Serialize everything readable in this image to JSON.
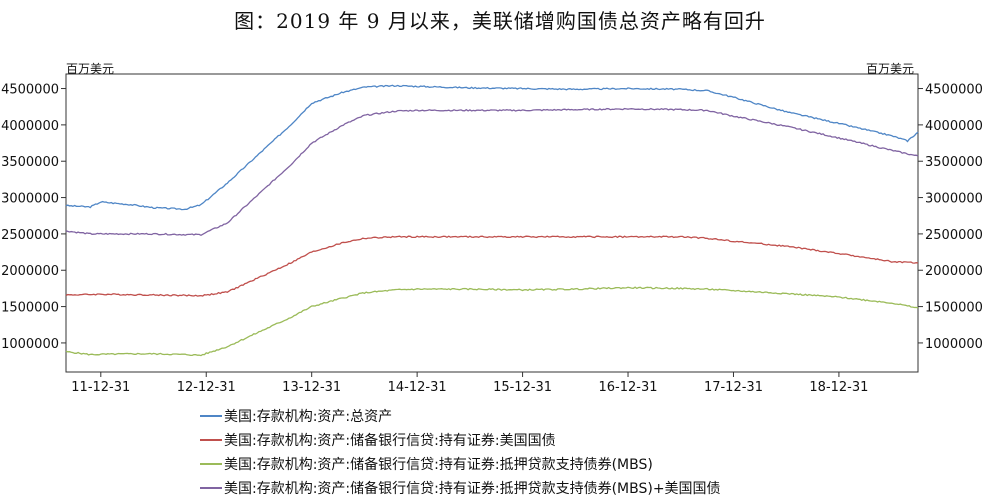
{
  "title": "图：2019 年 9 月以来，美联储增购国债总资产略有回升",
  "chart_data": {
    "type": "line",
    "left_unit": "百万美元",
    "right_unit": "百万美元",
    "x_ticks": [
      "11-12-31",
      "12-12-31",
      "13-12-31",
      "14-12-31",
      "15-12-31",
      "16-12-31",
      "17-12-31",
      "18-12-31"
    ],
    "x_range": [
      2011.67,
      2019.75
    ],
    "y_ticks": [
      "1000000",
      "1500000",
      "2000000",
      "2500000",
      "3000000",
      "3500000",
      "4000000",
      "4500000"
    ],
    "ylim": [
      600000,
      4700000
    ],
    "legend_position": "bottom",
    "series": [
      {
        "name": "美国:存款机构:资产:总资产",
        "color": "#4f86c6",
        "x": [
          2011.67,
          2011.9,
          2012.0,
          2012.3,
          2012.5,
          2012.8,
          2012.95,
          2013.2,
          2013.5,
          2013.8,
          2014.0,
          2014.3,
          2014.5,
          2014.8,
          2015.0,
          2015.5,
          2016.0,
          2016.5,
          2017.0,
          2017.5,
          2017.75,
          2018.0,
          2018.5,
          2019.0,
          2019.5,
          2019.65,
          2019.75
        ],
        "y": [
          2890000,
          2870000,
          2940000,
          2900000,
          2860000,
          2840000,
          2900000,
          3200000,
          3600000,
          4000000,
          4300000,
          4450000,
          4520000,
          4540000,
          4530000,
          4510000,
          4500000,
          4490000,
          4500000,
          4490000,
          4470000,
          4380000,
          4180000,
          4020000,
          3850000,
          3780000,
          3900000
        ]
      },
      {
        "name": "美国:存款机构:资产:储备银行信贷:持有证券:美国国债",
        "color": "#c0504d",
        "x": [
          2011.67,
          2012.0,
          2012.5,
          2012.95,
          2013.2,
          2013.5,
          2013.8,
          2014.0,
          2014.3,
          2014.5,
          2014.8,
          2015.0,
          2015.5,
          2016.0,
          2016.5,
          2017.0,
          2017.5,
          2017.75,
          2018.0,
          2018.5,
          2019.0,
          2019.5,
          2019.75
        ],
        "y": [
          1660000,
          1670000,
          1660000,
          1650000,
          1700000,
          1900000,
          2100000,
          2250000,
          2380000,
          2440000,
          2460000,
          2460000,
          2460000,
          2460000,
          2460000,
          2460000,
          2460000,
          2440000,
          2400000,
          2330000,
          2230000,
          2120000,
          2100000
        ]
      },
      {
        "name": "美国:存款机构:资产:储备银行信贷:持有证券:抵押贷款支持债券(MBS)",
        "color": "#9bbb59",
        "x": [
          2011.67,
          2011.9,
          2012.3,
          2012.5,
          2012.8,
          2012.95,
          2013.2,
          2013.5,
          2013.8,
          2014.0,
          2014.3,
          2014.5,
          2014.8,
          2015.0,
          2015.5,
          2016.0,
          2016.5,
          2017.0,
          2017.5,
          2017.75,
          2018.0,
          2018.5,
          2019.0,
          2019.5,
          2019.75
        ],
        "y": [
          880000,
          840000,
          850000,
          850000,
          840000,
          830000,
          950000,
          1150000,
          1350000,
          1500000,
          1620000,
          1690000,
          1730000,
          1740000,
          1740000,
          1730000,
          1740000,
          1760000,
          1750000,
          1740000,
          1720000,
          1680000,
          1630000,
          1550000,
          1480000
        ]
      },
      {
        "name": "美国:存款机构:资产:储备银行信贷:持有证券:抵押贷款支持债券(MBS)+美国国债",
        "color": "#8064a2",
        "x": [
          2011.67,
          2011.9,
          2012.3,
          2012.5,
          2012.8,
          2012.95,
          2013.2,
          2013.5,
          2013.8,
          2014.0,
          2014.3,
          2014.5,
          2014.8,
          2015.0,
          2015.5,
          2016.0,
          2016.5,
          2017.0,
          2017.5,
          2017.75,
          2018.0,
          2018.5,
          2019.0,
          2019.5,
          2019.75
        ],
        "y": [
          2540000,
          2500000,
          2500000,
          2500000,
          2490000,
          2490000,
          2650000,
          3050000,
          3450000,
          3750000,
          4000000,
          4130000,
          4190000,
          4200000,
          4200000,
          4200000,
          4210000,
          4220000,
          4210000,
          4200000,
          4120000,
          3980000,
          3820000,
          3650000,
          3570000
        ]
      }
    ]
  }
}
